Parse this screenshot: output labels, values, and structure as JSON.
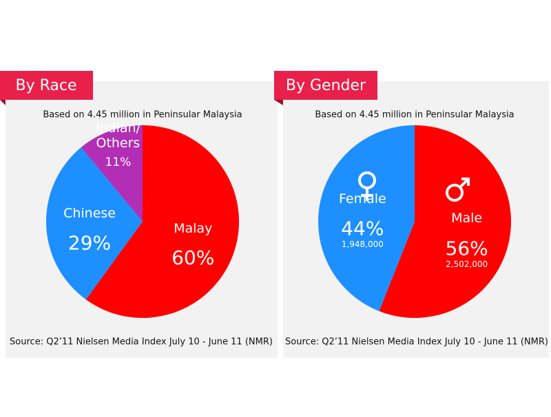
{
  "chart_data": [
    {
      "type": "pie",
      "title": "By Race",
      "subtitle": "Based on 4.45 million in Peninsular Malaysia",
      "categories": [
        "Malay",
        "Chinese",
        "Indian/ Others"
      ],
      "values": [
        60,
        29,
        11
      ],
      "value_labels": [
        "60%",
        "29%",
        "11%"
      ],
      "colors": [
        "#ff0000",
        "#1e8fff",
        "#b22eb4"
      ],
      "source": "Source: Q2’11 Nielsen Media Index July 10 - June 11 (NMR)"
    },
    {
      "type": "pie",
      "title": "By Gender",
      "subtitle": "Based on 4.45 million in Peninsular Malaysia",
      "categories": [
        "Male",
        "Female"
      ],
      "values": [
        56,
        44
      ],
      "value_labels": [
        "56%",
        "44%"
      ],
      "counts": [
        2502000,
        1948000
      ],
      "count_labels": [
        "2,502,000",
        "1,948,000"
      ],
      "colors": [
        "#ff0000",
        "#1e8fff"
      ],
      "source": "Source: Q2’11 Nielsen Media Index July 10 - June 11 (NMR)"
    }
  ]
}
